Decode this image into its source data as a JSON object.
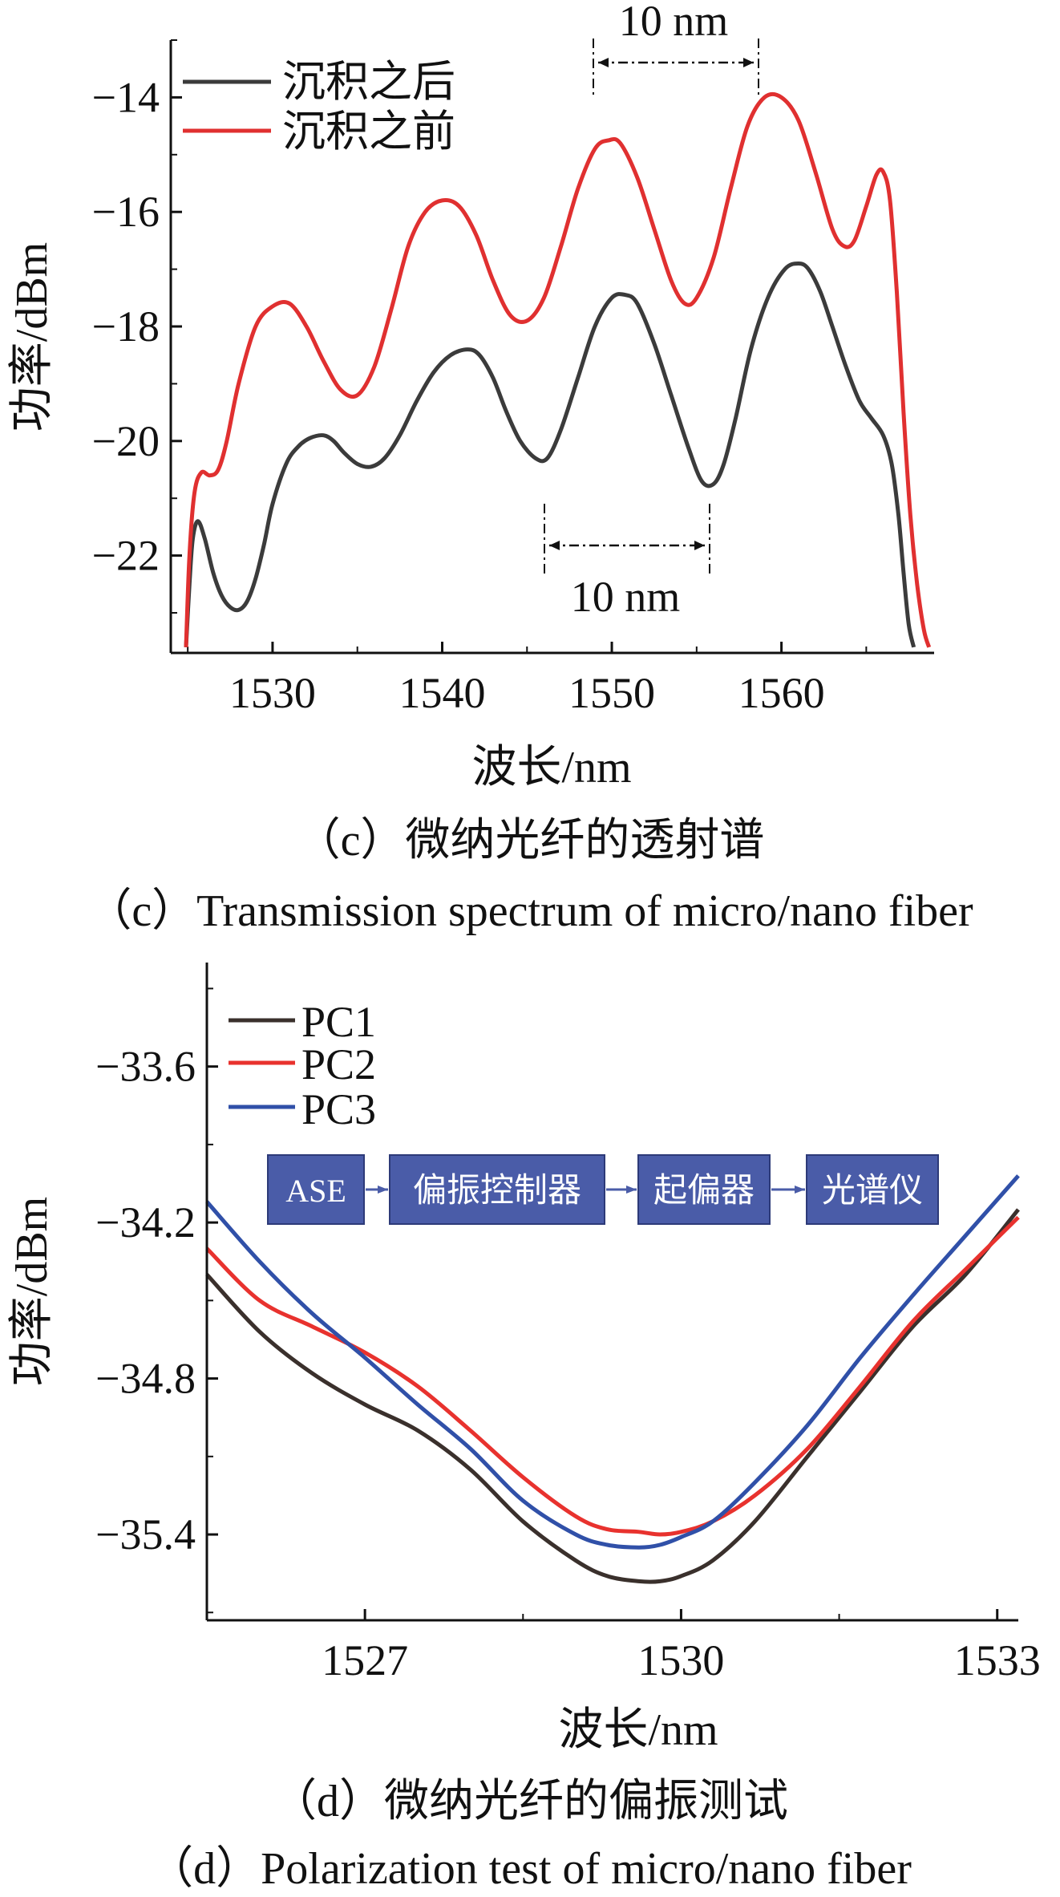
{
  "chart_data": [
    {
      "type": "line",
      "xlabel": "波长/nm",
      "ylabel": "功率/dBm",
      "xlim": [
        1524,
        1569
      ],
      "ylim": [
        -23.7,
        -13
      ],
      "xticks": [
        1530,
        1540,
        1550,
        1560
      ],
      "yticks": [
        -14,
        -16,
        -18,
        -20,
        -22
      ],
      "ytick_labels": [
        "−14",
        "−16",
        "−18",
        "−20",
        "−22"
      ],
      "legend": "top-left",
      "series": [
        {
          "name": "沉积之后",
          "color": "#3b3b3b",
          "x": [
            1524.9,
            1525.1,
            1525.3,
            1525.6,
            1526.0,
            1526.5,
            1527.0,
            1527.5,
            1528.0,
            1528.5,
            1529.0,
            1529.5,
            1530.0,
            1530.8,
            1531.5,
            1532.2,
            1533.0,
            1533.6,
            1534.2,
            1535.0,
            1535.8,
            1536.6,
            1537.5,
            1538.5,
            1539.5,
            1540.5,
            1541.5,
            1542.2,
            1543.0,
            1543.8,
            1544.6,
            1545.5,
            1546.2,
            1547.0,
            1548.0,
            1549.0,
            1550.0,
            1550.8,
            1551.5,
            1552.5,
            1553.5,
            1554.5,
            1555.3,
            1556.0,
            1556.6,
            1557.3,
            1558.2,
            1559.2,
            1560.2,
            1561.0,
            1561.6,
            1562.3,
            1563.0,
            1563.8,
            1564.6,
            1565.3,
            1566.0,
            1566.5,
            1566.9,
            1567.2,
            1567.5,
            1567.8
          ],
          "y": [
            -23.6,
            -22.5,
            -21.7,
            -21.4,
            -21.7,
            -22.3,
            -22.7,
            -22.9,
            -22.95,
            -22.8,
            -22.4,
            -21.8,
            -21.1,
            -20.4,
            -20.1,
            -19.95,
            -19.9,
            -20.0,
            -20.2,
            -20.4,
            -20.45,
            -20.3,
            -19.9,
            -19.3,
            -18.8,
            -18.5,
            -18.4,
            -18.5,
            -18.9,
            -19.5,
            -20.0,
            -20.3,
            -20.3,
            -19.8,
            -18.9,
            -18.0,
            -17.5,
            -17.45,
            -17.6,
            -18.3,
            -19.2,
            -20.1,
            -20.7,
            -20.75,
            -20.4,
            -19.6,
            -18.4,
            -17.5,
            -17.0,
            -16.9,
            -17.0,
            -17.4,
            -18.0,
            -18.7,
            -19.3,
            -19.6,
            -19.9,
            -20.4,
            -21.3,
            -22.3,
            -23.2,
            -23.6
          ]
        },
        {
          "name": "沉积之前",
          "color": "#e03030",
          "x": [
            1524.9,
            1525.1,
            1525.4,
            1525.8,
            1526.3,
            1526.8,
            1527.3,
            1528.0,
            1529.0,
            1530.0,
            1531.0,
            1532.0,
            1533.0,
            1534.0,
            1535.0,
            1536.0,
            1537.0,
            1538.0,
            1539.0,
            1540.0,
            1541.0,
            1542.0,
            1543.0,
            1544.0,
            1545.0,
            1546.0,
            1547.0,
            1548.0,
            1549.0,
            1549.8,
            1550.5,
            1551.5,
            1552.5,
            1553.5,
            1554.3,
            1555.0,
            1556.0,
            1557.0,
            1558.0,
            1559.0,
            1560.0,
            1561.0,
            1562.0,
            1563.0,
            1563.7,
            1564.3,
            1565.0,
            1565.6,
            1566.0,
            1566.4,
            1566.8,
            1567.2,
            1567.6,
            1568.0,
            1568.4,
            1568.7
          ],
          "y": [
            -23.6,
            -22.0,
            -20.9,
            -20.55,
            -20.6,
            -20.5,
            -20.0,
            -19.0,
            -18.0,
            -17.65,
            -17.6,
            -18.0,
            -18.6,
            -19.1,
            -19.2,
            -18.7,
            -17.7,
            -16.6,
            -16.0,
            -15.8,
            -15.9,
            -16.4,
            -17.2,
            -17.8,
            -17.9,
            -17.5,
            -16.6,
            -15.6,
            -14.9,
            -14.75,
            -14.8,
            -15.4,
            -16.3,
            -17.2,
            -17.6,
            -17.5,
            -16.8,
            -15.6,
            -14.5,
            -14.0,
            -14.0,
            -14.4,
            -15.3,
            -16.3,
            -16.6,
            -16.5,
            -15.9,
            -15.35,
            -15.3,
            -15.8,
            -17.4,
            -19.5,
            -21.3,
            -22.5,
            -23.3,
            -23.6
          ]
        }
      ],
      "annotations": [
        {
          "text": "10 nm",
          "from": 1549,
          "to": 1559
        },
        {
          "text": "10 nm",
          "from": 1546,
          "to": 1556
        }
      ],
      "caption": [
        "（c）微纳光纤的透射谱",
        "（c）Transmission spectrum of micro/nano fiber"
      ]
    },
    {
      "type": "line",
      "xlabel": "波长/nm",
      "ylabel": "功率/dBm",
      "xlim": [
        1525.5,
        1533.2
      ],
      "ylim": [
        -35.73,
        -33.2
      ],
      "xticks": [
        1527,
        1530,
        1533
      ],
      "yticks": [
        -33.6,
        -34.2,
        -34.8,
        -35.4
      ],
      "ytick_labels": [
        "−33.6",
        "−34.2",
        "−34.8",
        "−35.4"
      ],
      "legend": "top-left",
      "series": [
        {
          "name": "PC1",
          "color": "#3a302c",
          "x": [
            1525.5,
            1526.0,
            1526.5,
            1527.0,
            1527.5,
            1528.0,
            1528.5,
            1529.0,
            1529.3,
            1529.6,
            1529.8,
            1530.0,
            1530.3,
            1530.7,
            1531.2,
            1531.7,
            1532.2,
            1532.7,
            1533.2
          ],
          "y": [
            -34.4,
            -34.62,
            -34.78,
            -34.9,
            -35.0,
            -35.15,
            -35.35,
            -35.5,
            -35.56,
            -35.58,
            -35.58,
            -35.56,
            -35.5,
            -35.35,
            -35.1,
            -34.85,
            -34.6,
            -34.4,
            -34.15
          ]
        },
        {
          "name": "PC2",
          "color": "#e8322e",
          "x": [
            1525.5,
            1526.0,
            1526.5,
            1527.0,
            1527.5,
            1528.0,
            1528.5,
            1529.0,
            1529.3,
            1529.6,
            1529.8,
            1530.0,
            1530.3,
            1530.7,
            1531.2,
            1531.7,
            1532.2,
            1532.7,
            1533.2
          ],
          "y": [
            -34.3,
            -34.5,
            -34.6,
            -34.7,
            -34.83,
            -35.0,
            -35.18,
            -35.33,
            -35.38,
            -35.39,
            -35.4,
            -35.39,
            -35.35,
            -35.25,
            -35.07,
            -34.83,
            -34.58,
            -34.38,
            -34.18
          ]
        },
        {
          "name": "PC3",
          "color": "#3050a8",
          "x": [
            1525.5,
            1526.0,
            1526.5,
            1527.0,
            1527.5,
            1528.0,
            1528.5,
            1529.0,
            1529.3,
            1529.6,
            1529.8,
            1530.0,
            1530.3,
            1530.7,
            1531.2,
            1531.7,
            1532.2,
            1532.7,
            1533.2
          ],
          "y": [
            -34.12,
            -34.35,
            -34.55,
            -34.72,
            -34.9,
            -35.07,
            -35.27,
            -35.4,
            -35.44,
            -35.45,
            -35.44,
            -35.41,
            -35.35,
            -35.2,
            -34.98,
            -34.72,
            -34.48,
            -34.25,
            -34.02
          ]
        }
      ],
      "inset_flow": [
        "ASE",
        "偏振控制器",
        "起偏器",
        "光谱仪"
      ],
      "inset_colors": {
        "box": "#4a5ca8",
        "arrow": "#4a5ca8",
        "text": "#ffffff"
      },
      "caption": [
        "（d）微纳光纤的偏振测试",
        "（d）Polarization test of micro/nano fiber"
      ]
    }
  ]
}
